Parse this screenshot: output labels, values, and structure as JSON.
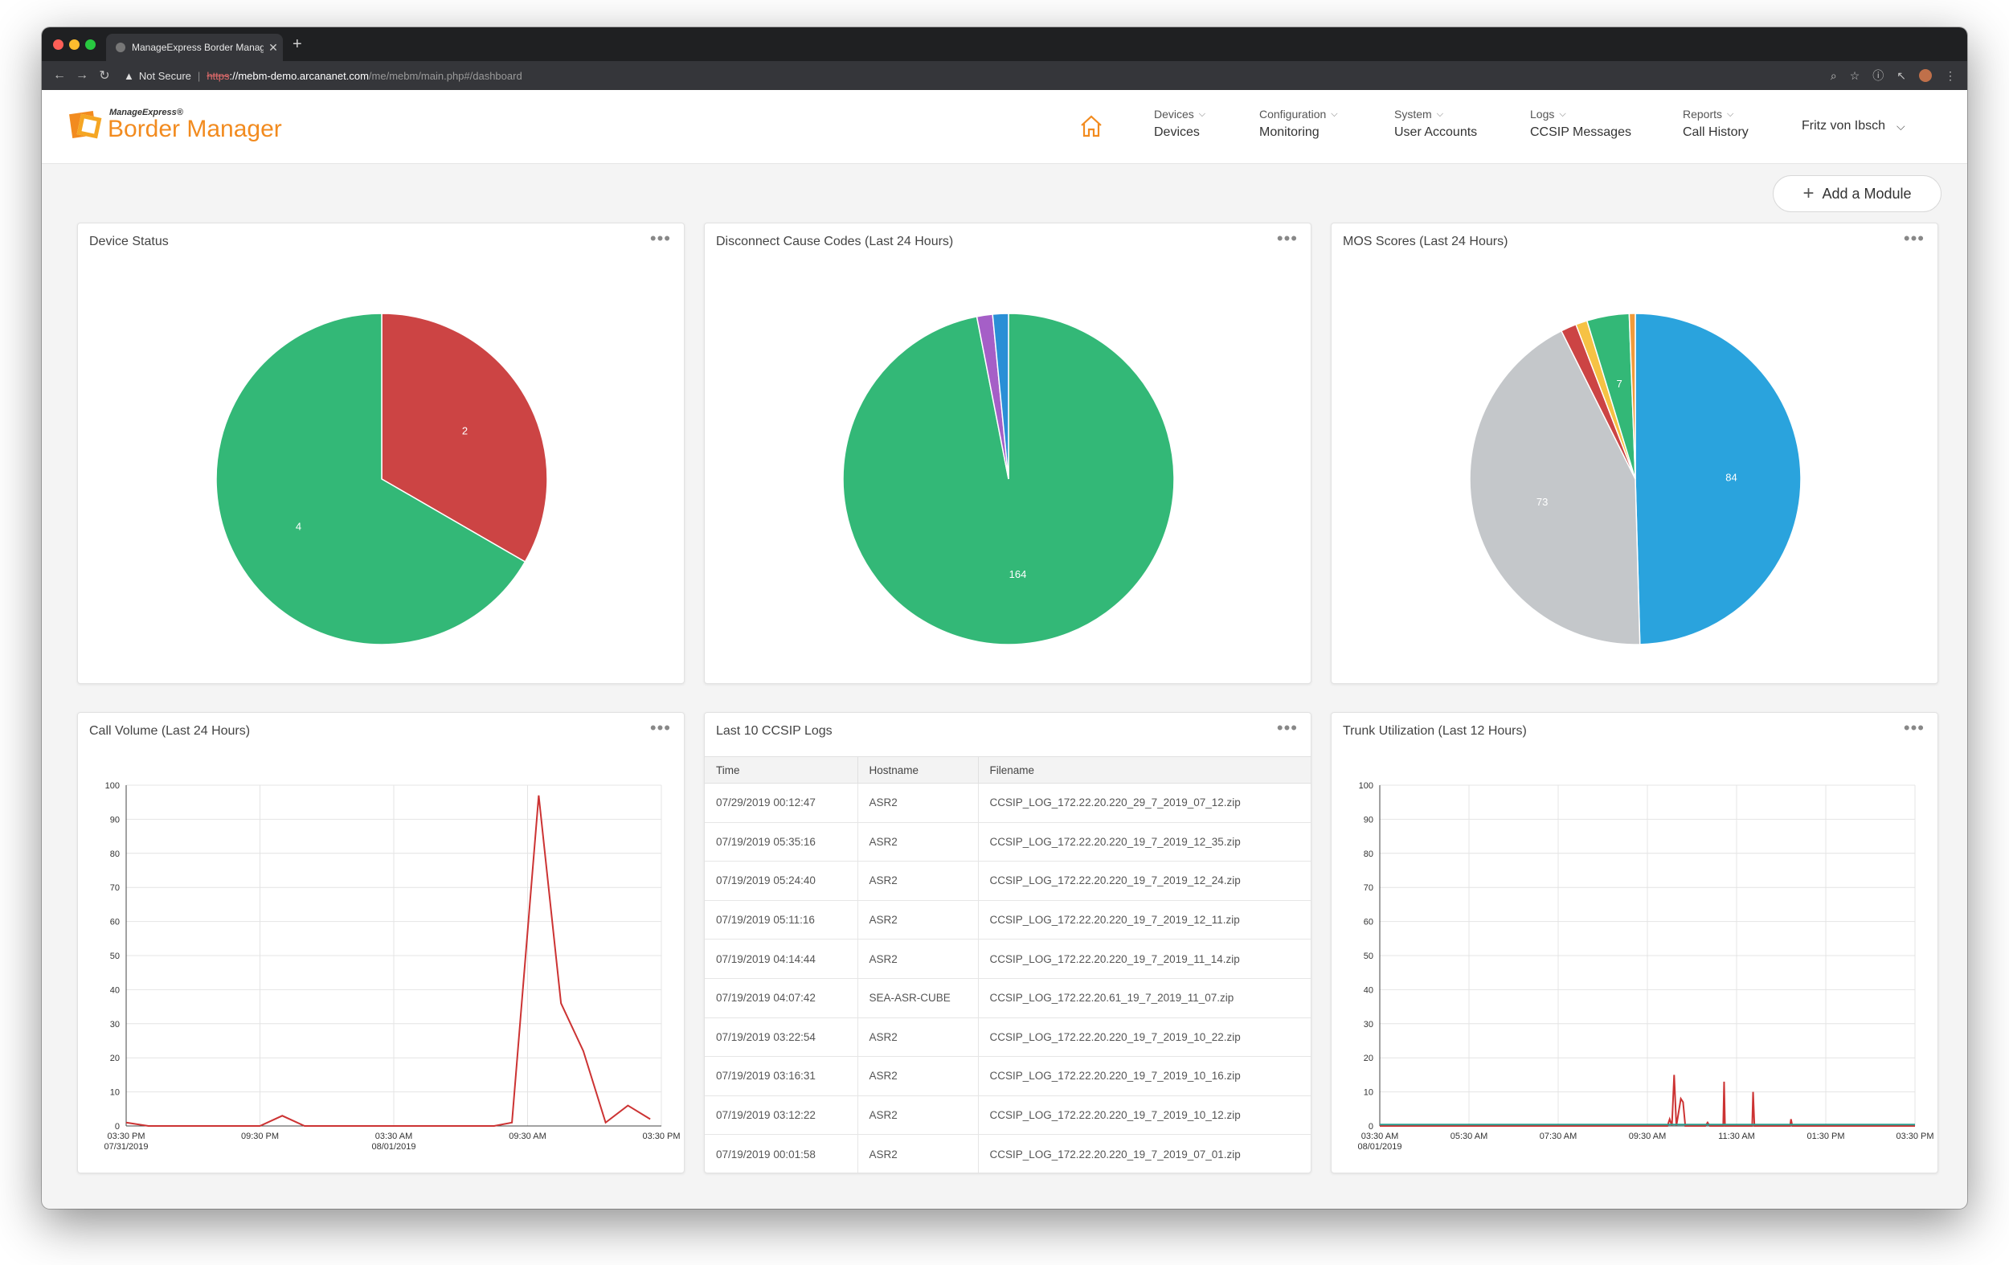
{
  "browser": {
    "tab_title": "ManageExpress Border Manag",
    "security_label": "Not Secure",
    "url_scheme": "https",
    "url_host": "://mebm-demo.arcananet.com",
    "url_path": "/me/mebm/main.php#/dashboard"
  },
  "app": {
    "logo_small": "ManageExpress®",
    "logo_big": "Border Manager",
    "brand_color": "#f28b1f",
    "nav": [
      {
        "top": "Devices",
        "bottom": "Devices"
      },
      {
        "top": "Configuration",
        "bottom": "Monitoring"
      },
      {
        "top": "System",
        "bottom": "User Accounts"
      },
      {
        "top": "Logs",
        "bottom": "CCSIP Messages"
      },
      {
        "top": "Reports",
        "bottom": "Call History"
      }
    ],
    "user": "Fritz von Ibsch",
    "add_module": "Add a Module"
  },
  "panels": {
    "device_status": "Device Status",
    "disconnect": "Disconnect Cause Codes (Last 24 Hours)",
    "mos": "MOS Scores (Last 24 Hours)",
    "call_volume": "Call Volume (Last 24 Hours)",
    "ccsip": "Last 10 CCSIP Logs",
    "trunk": "Trunk Utilization (Last 12 Hours)"
  },
  "ccsip_table": {
    "headers": [
      "Time",
      "Hostname",
      "Filename"
    ],
    "rows": [
      [
        "07/29/2019 00:12:47",
        "ASR2",
        "CCSIP_LOG_172.22.20.220_29_7_2019_07_12.zip"
      ],
      [
        "07/19/2019 05:35:16",
        "ASR2",
        "CCSIP_LOG_172.22.20.220_19_7_2019_12_35.zip"
      ],
      [
        "07/19/2019 05:24:40",
        "ASR2",
        "CCSIP_LOG_172.22.20.220_19_7_2019_12_24.zip"
      ],
      [
        "07/19/2019 05:11:16",
        "ASR2",
        "CCSIP_LOG_172.22.20.220_19_7_2019_12_11.zip"
      ],
      [
        "07/19/2019 04:14:44",
        "ASR2",
        "CCSIP_LOG_172.22.20.220_19_7_2019_11_14.zip"
      ],
      [
        "07/19/2019 04:07:42",
        "SEA-ASR-CUBE",
        "CCSIP_LOG_172.22.20.61_19_7_2019_11_07.zip"
      ],
      [
        "07/19/2019 03:22:54",
        "ASR2",
        "CCSIP_LOG_172.22.20.220_19_7_2019_10_22.zip"
      ],
      [
        "07/19/2019 03:16:31",
        "ASR2",
        "CCSIP_LOG_172.22.20.220_19_7_2019_10_16.zip"
      ],
      [
        "07/19/2019 03:12:22",
        "ASR2",
        "CCSIP_LOG_172.22.20.220_19_7_2019_10_12.zip"
      ],
      [
        "07/19/2019 00:01:58",
        "ASR2",
        "CCSIP_LOG_172.22.20.220_19_7_2019_07_01.zip"
      ]
    ]
  },
  "chart_data": [
    {
      "type": "pie",
      "title": "Device Status",
      "slices": [
        {
          "value": 2,
          "label": "2",
          "color": "#cc4444"
        },
        {
          "value": 4,
          "label": "4",
          "color": "#33b877"
        }
      ]
    },
    {
      "type": "pie",
      "title": "Disconnect Cause Codes (Last 24 Hours)",
      "slices": [
        {
          "value": 164,
          "label": "164",
          "color": "#33b877"
        },
        {
          "value": 2.6,
          "label": "",
          "color": "#a55fc7"
        },
        {
          "value": 2.6,
          "label": "",
          "color": "#2a8fd6"
        }
      ]
    },
    {
      "type": "pie",
      "title": "MOS Scores (Last 24 Hours)",
      "slices": [
        {
          "value": 84,
          "label": "84",
          "color": "#2aa3dd"
        },
        {
          "value": 73,
          "label": "73",
          "color": "#c4c7ca"
        },
        {
          "value": 2.6,
          "label": "",
          "color": "#cc4444"
        },
        {
          "value": 1.9,
          "label": "",
          "color": "#f6c244"
        },
        {
          "value": 7,
          "label": "7",
          "color": "#33b877"
        },
        {
          "value": 1,
          "label": "",
          "color": "#f29b3a"
        }
      ]
    },
    {
      "type": "line",
      "title": "Call Volume (Last 24 Hours)",
      "ylim": [
        0,
        100
      ],
      "yticks": [
        0,
        10,
        20,
        30,
        40,
        50,
        60,
        70,
        80,
        90,
        100
      ],
      "xlim": [
        0,
        24
      ],
      "xticks": [
        {
          "x": 0,
          "label": "03:30 PM",
          "sub": "07/31/2019"
        },
        {
          "x": 6,
          "label": "09:30 PM",
          "sub": ""
        },
        {
          "x": 12,
          "label": "03:30 AM",
          "sub": "08/01/2019"
        },
        {
          "x": 18,
          "label": "09:30 AM",
          "sub": ""
        },
        {
          "x": 24,
          "label": "03:30 PM",
          "sub": ""
        }
      ],
      "series": [
        {
          "color": "#cc3333",
          "points": [
            [
              0,
              1
            ],
            [
              1,
              0
            ],
            [
              6,
              0
            ],
            [
              7,
              3
            ],
            [
              8,
              0
            ],
            [
              16.5,
              0
            ],
            [
              17.3,
              1
            ],
            [
              18.5,
              97
            ],
            [
              19.5,
              36
            ],
            [
              20.5,
              22
            ],
            [
              21.5,
              1
            ],
            [
              22.5,
              6
            ],
            [
              23.5,
              2
            ]
          ]
        }
      ]
    },
    {
      "type": "line",
      "title": "Trunk Utilization (Last 12 Hours)",
      "ylim": [
        0,
        100
      ],
      "yticks": [
        0,
        10,
        20,
        30,
        40,
        50,
        60,
        70,
        80,
        90,
        100
      ],
      "xlim": [
        0,
        12
      ],
      "xticks": [
        {
          "x": 0,
          "label": "03:30 AM",
          "sub": "08/01/2019"
        },
        {
          "x": 2,
          "label": "05:30 AM",
          "sub": ""
        },
        {
          "x": 4,
          "label": "07:30 AM",
          "sub": ""
        },
        {
          "x": 6,
          "label": "09:30 AM",
          "sub": ""
        },
        {
          "x": 8,
          "label": "11:30 AM",
          "sub": ""
        },
        {
          "x": 10,
          "label": "01:30 PM",
          "sub": ""
        },
        {
          "x": 12,
          "label": "03:30 PM",
          "sub": ""
        }
      ],
      "series": [
        {
          "color": "#cc3333",
          "points": [
            [
              0,
              0
            ],
            [
              6.45,
              0
            ],
            [
              6.5,
              2
            ],
            [
              6.55,
              0
            ],
            [
              6.6,
              15
            ],
            [
              6.65,
              0
            ],
            [
              6.75,
              8
            ],
            [
              6.8,
              7
            ],
            [
              6.85,
              0
            ],
            [
              7.3,
              0
            ],
            [
              7.35,
              1
            ],
            [
              7.4,
              0
            ],
            [
              7.7,
              0
            ],
            [
              7.72,
              13
            ],
            [
              7.74,
              0
            ],
            [
              7.8,
              0
            ],
            [
              8.35,
              0
            ],
            [
              8.37,
              10
            ],
            [
              8.4,
              0
            ],
            [
              9.2,
              0
            ],
            [
              9.22,
              2
            ],
            [
              9.25,
              0
            ],
            [
              12,
              0
            ]
          ]
        },
        {
          "color": "#2a9d8f",
          "points": [
            [
              0,
              0.4
            ],
            [
              12,
              0.4
            ]
          ]
        }
      ]
    }
  ]
}
